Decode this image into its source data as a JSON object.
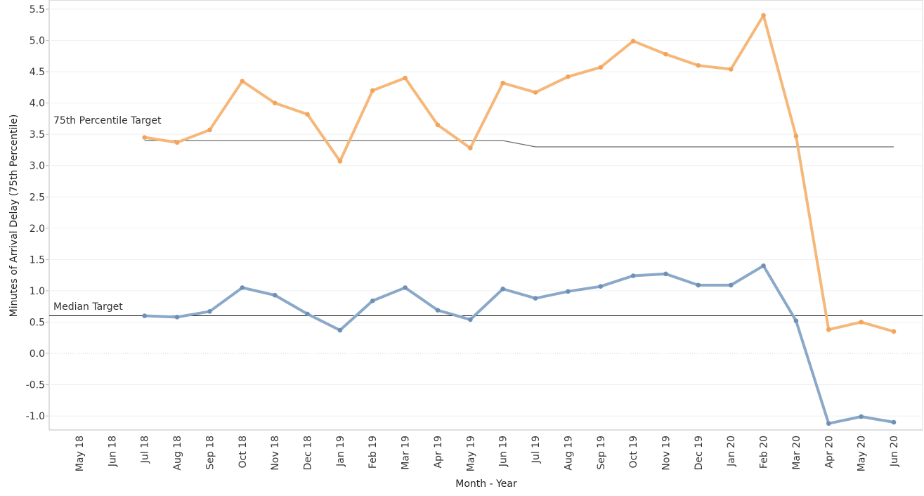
{
  "chart_data": {
    "type": "line",
    "title": "",
    "xlabel": "Month - Year",
    "ylabel": "Minutes of Arrival Delay (75th Percentile)",
    "ylim": [
      -1.2,
      5.5
    ],
    "yticks": [
      "5.5",
      "5.0",
      "4.5",
      "4.0",
      "3.5",
      "3.0",
      "2.5",
      "2.0",
      "1.5",
      "1.0",
      "0.5",
      "0.0",
      "-0.5",
      "-1.0"
    ],
    "categories": [
      "May 18",
      "Jun 18",
      "Jul 18",
      "Aug 18",
      "Sep 18",
      "Oct 18",
      "Nov 18",
      "Dec 18",
      "Jan 19",
      "Feb 19",
      "Mar 19",
      "Apr 19",
      "May 19",
      "Jun 19",
      "Jul 19",
      "Aug 19",
      "Sep 19",
      "Oct 19",
      "Nov 19",
      "Dec 19",
      "Jan 20",
      "Feb 20",
      "Mar 20",
      "Apr 20",
      "May 20",
      "Jun 20"
    ],
    "grid": true,
    "series": [
      {
        "color": "#f5b87a",
        "values": [
          null,
          null,
          3.45,
          3.37,
          3.57,
          4.35,
          4.0,
          3.82,
          3.07,
          4.2,
          4.4,
          3.65,
          3.28,
          4.32,
          4.17,
          4.42,
          4.57,
          4.99,
          4.78,
          4.6,
          4.54,
          5.4,
          3.47,
          0.38,
          0.5,
          0.35
        ]
      },
      {
        "color": "#8aa8c8",
        "values": [
          null,
          null,
          0.6,
          0.58,
          0.67,
          1.05,
          0.93,
          0.63,
          0.37,
          0.84,
          1.05,
          0.69,
          0.54,
          1.03,
          0.88,
          0.99,
          1.07,
          1.24,
          1.27,
          1.09,
          1.09,
          1.4,
          0.52,
          -1.12,
          -1.01,
          -1.1
        ]
      }
    ],
    "reference_lines": [
      {
        "label": "75th Percentile Target",
        "color": "#6b6b6b",
        "values": [
          null,
          null,
          3.4,
          3.4,
          3.4,
          3.4,
          3.4,
          3.4,
          3.4,
          3.4,
          3.4,
          3.4,
          3.4,
          3.4,
          3.3,
          3.3,
          3.3,
          3.3,
          3.3,
          3.3,
          3.3,
          3.3,
          3.3,
          3.3,
          3.3,
          3.3
        ]
      },
      {
        "label": "Median Target",
        "color": "#000000",
        "value": 0.6
      }
    ]
  }
}
